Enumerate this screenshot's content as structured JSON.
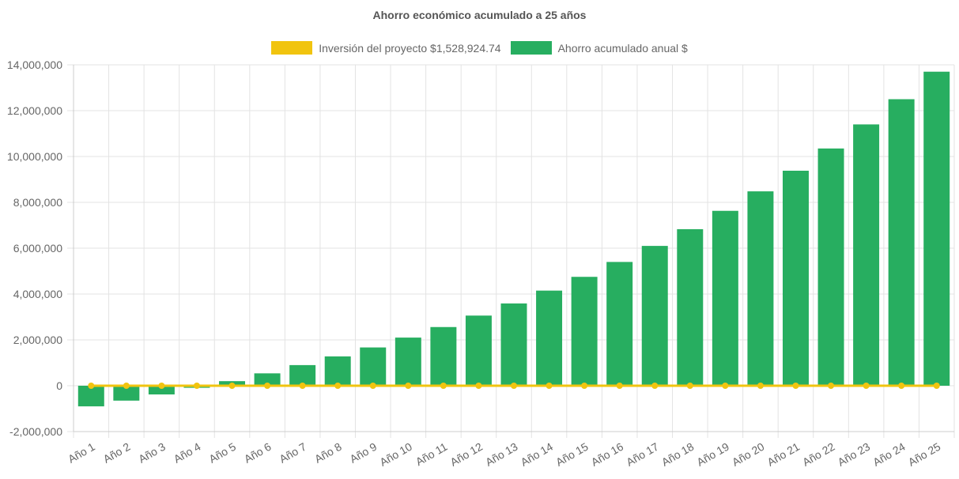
{
  "chart_data": {
    "type": "bar",
    "title": "Ahorro económico acumulado a 25 años",
    "categories": [
      "Año 1",
      "Año 2",
      "Año 3",
      "Año 4",
      "Año 5",
      "Año 6",
      "Año 7",
      "Año 8",
      "Año 9",
      "Año 10",
      "Año 11",
      "Año 12",
      "Año 13",
      "Año 14",
      "Año 15",
      "Año 16",
      "Año 17",
      "Año 18",
      "Año 19",
      "Año 20",
      "Año 21",
      "Año 22",
      "Año 23",
      "Año 24",
      "Año 25"
    ],
    "series": [
      {
        "name": "Inversión del proyecto $1,528,924.74",
        "type": "line",
        "color": "#f1c40f",
        "values": [
          0,
          0,
          0,
          0,
          0,
          0,
          0,
          0,
          0,
          0,
          0,
          0,
          0,
          0,
          0,
          0,
          0,
          0,
          0,
          0,
          0,
          0,
          0,
          0,
          0
        ]
      },
      {
        "name": "Ahorro acumulado anual $",
        "type": "bar",
        "color": "#27ae60",
        "values": [
          -900000,
          -650000,
          -380000,
          -90000,
          200000,
          540000,
          900000,
          1280000,
          1670000,
          2100000,
          2560000,
          3060000,
          3590000,
          4150000,
          4750000,
          5400000,
          6100000,
          6830000,
          7630000,
          8480000,
          9380000,
          10350000,
          11400000,
          12500000,
          13700000
        ]
      }
    ],
    "y_ticks": [
      "14,000,000",
      "12,000,000",
      "10,000,000",
      "8,000,000",
      "6,000,000",
      "4,000,000",
      "2,000,000",
      "0",
      "-2,000,000"
    ],
    "y_tick_values": [
      14000000,
      12000000,
      10000000,
      8000000,
      6000000,
      4000000,
      2000000,
      0,
      -2000000
    ],
    "ylim": [
      -2000000,
      14000000
    ],
    "grid": true,
    "legend_position": "top",
    "xlabel": "",
    "ylabel": ""
  }
}
